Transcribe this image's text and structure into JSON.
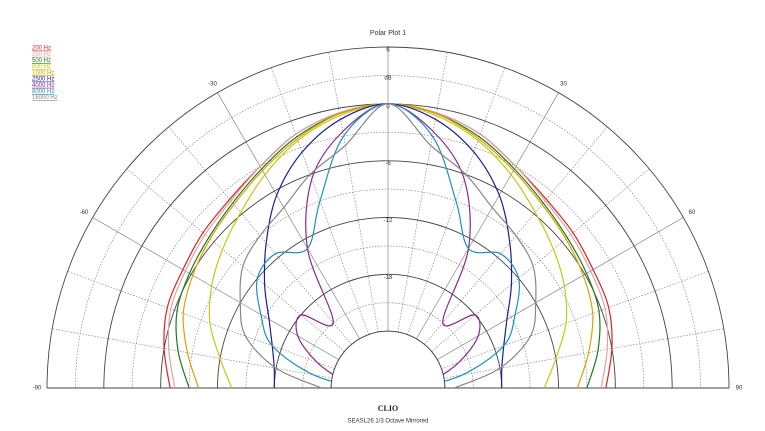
{
  "chart_data": {
    "type": "polar",
    "title": "Polar Plot 1",
    "footer_logo": "CLIO",
    "subtitle": "SEASL26   1/3 Octave   Mirrored",
    "r_unit": "dB",
    "rlim": [
      -30,
      6
    ],
    "rticks": [
      -24,
      -18,
      -12,
      -6,
      0,
      6
    ],
    "rgrid_minor": [
      -21,
      -15,
      -9,
      -3,
      3
    ],
    "thetaticks": [
      -90,
      -60,
      -30,
      30,
      60,
      90
    ],
    "theta": [
      -90,
      -80,
      -70,
      -60,
      -50,
      -40,
      -30,
      -20,
      -10,
      0,
      10,
      20,
      30,
      40,
      50,
      60,
      70,
      80,
      90
    ],
    "series": [
      {
        "name": "200 Hz",
        "color": "#e02020",
        "values": [
          -7,
          -6,
          -5.2,
          -5,
          -4.5,
          -4,
          -3,
          -1.5,
          -0.5,
          0,
          -0.5,
          -1.5,
          -3,
          -4,
          -4.5,
          -5,
          -5.2,
          -6,
          -7
        ]
      },
      {
        "name": "250 Hz",
        "color": "#d8a8a8",
        "values": [
          -7.5,
          -6.5,
          -5.6,
          -5.3,
          -4.8,
          -4.2,
          -3,
          -1.5,
          -0.5,
          0,
          -0.5,
          -1.5,
          -3,
          -4.2,
          -4.8,
          -5.3,
          -5.6,
          -6.5,
          -7.5
        ]
      },
      {
        "name": "500 Hz",
        "color": "#1f7a1f",
        "values": [
          -9,
          -7.5,
          -6.3,
          -5.8,
          -5.3,
          -4.5,
          -3.3,
          -1.8,
          -0.6,
          0,
          -0.6,
          -1.8,
          -3.3,
          -4.5,
          -5.3,
          -5.8,
          -6.3,
          -7.5,
          -9
        ]
      },
      {
        "name": "800 Hz",
        "color": "#c8c810",
        "values": [
          -13.5,
          -12,
          -10,
          -8.5,
          -7.2,
          -5.8,
          -4,
          -2.2,
          -0.8,
          0,
          -0.8,
          -2.2,
          -4,
          -5.8,
          -7.2,
          -8.5,
          -10,
          -12,
          -13.5
        ]
      },
      {
        "name": "1000 Hz",
        "color": "#e0a000",
        "values": [
          -10,
          -8.5,
          -7,
          -6.2,
          -5.5,
          -4.7,
          -3.5,
          -2,
          -0.6,
          0,
          -0.6,
          -2,
          -3.5,
          -4.7,
          -5.5,
          -6.2,
          -7,
          -8.5,
          -10
        ]
      },
      {
        "name": "2500 Hz",
        "color": "#1c1c9a",
        "values": [
          -18,
          -17.8,
          -17,
          -15.5,
          -13,
          -10,
          -6.5,
          -3.5,
          -1.2,
          0,
          -1.2,
          -3.5,
          -6.5,
          -10,
          -13,
          -15.5,
          -17,
          -17.8,
          -18
        ]
      },
      {
        "name": "4000 Hz",
        "color": "#8a2a8a",
        "values": [
          -27,
          -25,
          -22,
          -19,
          -18,
          -21,
          -13,
          -6.5,
          -2.5,
          0,
          -2.5,
          -6.5,
          -13,
          -21,
          -18,
          -19,
          -22,
          -25,
          -27
        ]
      },
      {
        "name": "8000 Hz",
        "color": "#2090b8",
        "values": [
          -27,
          -22,
          -17,
          -14.5,
          -12,
          -11.5,
          -13,
          -9,
          -3,
          0,
          -3,
          -9,
          -13,
          -11.5,
          -12,
          -14.5,
          -17,
          -22,
          -27
        ]
      },
      {
        "name": "16000 Hz",
        "color": "#888888",
        "values": [
          -23,
          -18,
          -14,
          -12,
          -10,
          -9,
          -8,
          -6,
          -4,
          0,
          -4,
          -6,
          -8,
          -9,
          -10,
          -12,
          -14,
          -18,
          -23
        ]
      }
    ]
  }
}
